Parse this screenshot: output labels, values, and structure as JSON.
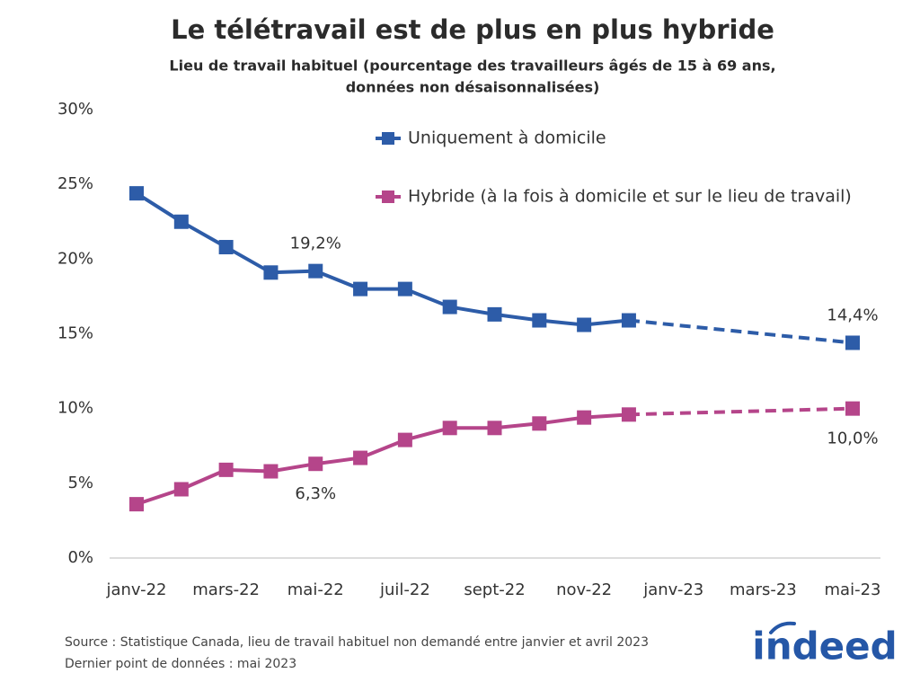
{
  "chart_data": {
    "type": "line",
    "title": "Le télétravail est de plus en plus hybride",
    "subtitle": [
      "Lieu de travail habituel (pourcentage des travailleurs âgés de 15 à 69 ans,",
      "données non désaisonnalisées)"
    ],
    "categories": [
      "janv-22",
      null,
      "mars-22",
      null,
      "mai-22",
      null,
      "juil-22",
      null,
      "sept-22",
      null,
      "nov-22",
      null,
      "janv-23",
      null,
      "mars-23",
      null,
      "mai-23"
    ],
    "series": [
      {
        "name": "Uniquement à domicile",
        "color": "#2d5ca8",
        "values": [
          24.4,
          22.5,
          20.8,
          19.1,
          19.2,
          18.0,
          18.0,
          16.8,
          16.3,
          15.9,
          15.6,
          15.9,
          null,
          null,
          null,
          null,
          14.4
        ],
        "value_labels": [
          null,
          null,
          null,
          null,
          "19,2%",
          null,
          null,
          null,
          null,
          null,
          null,
          null,
          null,
          null,
          null,
          null,
          "14,4%"
        ]
      },
      {
        "name": "Hybride (à la fois à domicile et sur le lieu de travail)",
        "color": "#b5458a",
        "values": [
          3.6,
          4.6,
          5.9,
          5.8,
          6.3,
          6.7,
          7.9,
          8.7,
          8.7,
          9.0,
          9.4,
          9.6,
          null,
          null,
          null,
          null,
          10.0
        ],
        "value_labels": [
          null,
          null,
          null,
          null,
          "6,3%",
          null,
          null,
          null,
          null,
          null,
          null,
          null,
          null,
          null,
          null,
          null,
          "10,0%"
        ]
      }
    ],
    "ylim": [
      0,
      30
    ],
    "yticks": [
      {
        "value": 0,
        "label": "0%"
      },
      {
        "value": 5,
        "label": "5%"
      },
      {
        "value": 10,
        "label": "10%"
      },
      {
        "value": 15,
        "label": "15%"
      },
      {
        "value": 20,
        "label": "20%"
      },
      {
        "value": 25,
        "label": "25%"
      },
      {
        "value": 30,
        "label": "30%"
      }
    ],
    "grid": false,
    "source": "Source : Statistique Canada, lieu de travail habituel non demandé entre janvier et avril 2023",
    "footnote": "Dernier point de données : mai 2023"
  },
  "logo": "indeed"
}
